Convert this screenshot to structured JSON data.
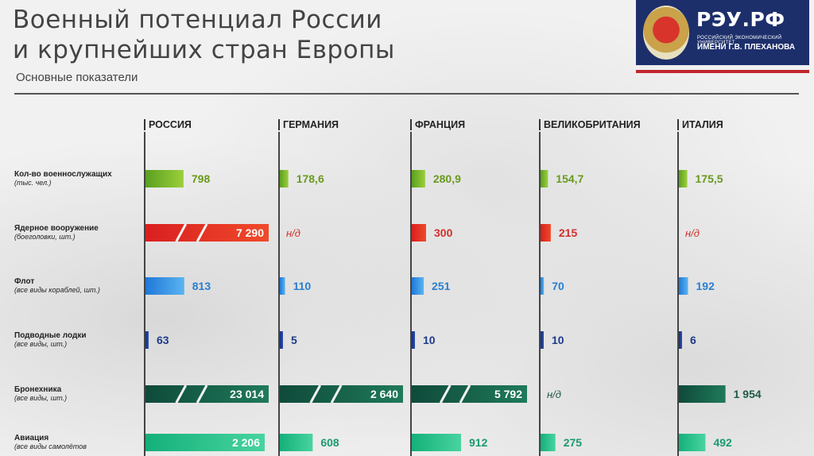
{
  "header": {
    "title_line1": "Военный потенциал России",
    "title_line2": "и крупнейших стран Европы",
    "subtitle": "Основные показатели"
  },
  "logo": {
    "name": "РЭУ.РФ",
    "sub_line1": "РОССИЙСКИЙ ЭКОНОМИЧЕСКИЙ УНИВЕРСИТЕТ",
    "sub_line2": "ИМЕНИ Г.В. ПЛЕХАНОВА",
    "box_color": "#1d2f6b",
    "stripe_color": "#c2262e",
    "icon": "emblem-icon"
  },
  "chart_data": {
    "type": "bar",
    "countries": [
      "РОССИЯ",
      "ГЕРМАНИЯ",
      "ФРАНЦИЯ",
      "ВЕЛИКОБРИТАНИЯ",
      "ИТАЛИЯ"
    ],
    "rows": [
      {
        "label": "Кол-во военнослужащих",
        "sublabel": "(тыс. чел.)",
        "color_dark": "#5aa020",
        "color_light": "#9ccf3a",
        "text_color": "#6a9a1e",
        "values": [
          798,
          178.6,
          280.9,
          154.7,
          175.5
        ],
        "labels": [
          "798",
          "178,6",
          "280,9",
          "154,7",
          "175,5"
        ],
        "broken": [
          false,
          false,
          false,
          false,
          false
        ],
        "scale_max": 1000
      },
      {
        "label": "Ядерное вооружение",
        "sublabel": "(боеголовки, шт.)",
        "color_dark": "#d91f1f",
        "color_light": "#f04a2a",
        "text_color": "#d0302a",
        "values": [
          7290,
          null,
          300,
          215,
          null
        ],
        "labels": [
          "7 290",
          "н/д",
          "300",
          "215",
          "н/д"
        ],
        "broken": [
          true,
          false,
          false,
          false,
          false
        ],
        "scale_max": 1000
      },
      {
        "label": "Флот",
        "sublabel": "(все виды кораблей, шт.)",
        "color_dark": "#1f78d8",
        "color_light": "#5ab4f0",
        "text_color": "#2a7ed0",
        "values": [
          813,
          110,
          251,
          70,
          192
        ],
        "labels": [
          "813",
          "110",
          "251",
          "70",
          "192"
        ],
        "broken": [
          false,
          false,
          false,
          false,
          false
        ],
        "scale_max": 1000
      },
      {
        "label": "Подводные лодки",
        "sublabel": "(все виды, шт.)",
        "color_dark": "#15307e",
        "color_light": "#2a4fb0",
        "text_color": "#1f3a8a",
        "values": [
          63,
          5,
          10,
          10,
          6
        ],
        "labels": [
          "63",
          "5",
          "10",
          "10",
          "6"
        ],
        "broken": [
          false,
          false,
          false,
          false,
          false
        ],
        "scale_max": 1000
      },
      {
        "label": "Бронехника",
        "sublabel": "(все виды, шт.)",
        "color_dark": "#0f4a3a",
        "color_light": "#1f7a5a",
        "text_color": "#1f5a48",
        "values": [
          23014,
          2640,
          5792,
          null,
          1954
        ],
        "labels": [
          "23 014",
          "2 640",
          "5 792",
          "н/д",
          "1 954"
        ],
        "broken": [
          true,
          true,
          true,
          false,
          false
        ],
        "scale_max": 2000
      },
      {
        "label": "Авиация",
        "sublabel": "(все виды самолётов",
        "color_dark": "#15b07a",
        "color_light": "#48d4a0",
        "text_color": "#1a9a70",
        "values": [
          2206,
          608,
          912,
          275,
          492
        ],
        "labels": [
          "2 206",
          "608",
          "912",
          "275",
          "492"
        ],
        "broken": [
          false,
          false,
          false,
          false,
          false
        ],
        "scale_max": 2206
      }
    ]
  }
}
